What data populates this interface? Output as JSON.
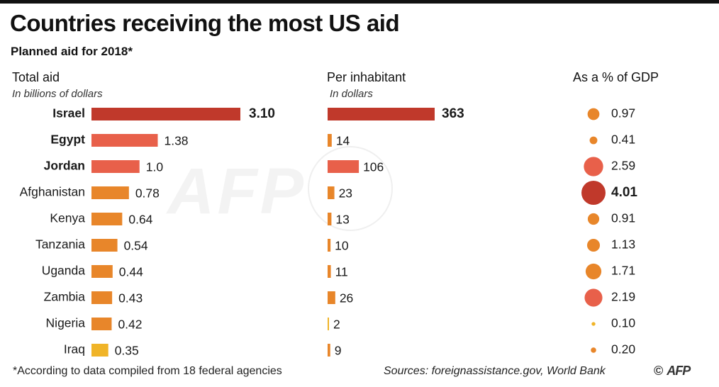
{
  "title": "Countries receiving the most US aid",
  "subtitle": "Planned aid for 2018*",
  "columns": {
    "total": {
      "heading": "Total aid",
      "unit": "In billions of dollars"
    },
    "per": {
      "heading": "Per inhabitant",
      "unit": "In dollars"
    },
    "gdp": {
      "heading": "As a % of GDP"
    }
  },
  "chart_data": {
    "type": "bar",
    "title": "Countries receiving the most US aid",
    "subtitle": "Planned aid for 2018*",
    "categories": [
      "Israel",
      "Egypt",
      "Jordan",
      "Afghanistan",
      "Kenya",
      "Tanzania",
      "Uganda",
      "Zambia",
      "Nigeria",
      "Iraq"
    ],
    "series": [
      {
        "name": "Total aid",
        "unit": "In billions of dollars",
        "values": [
          3.1,
          1.38,
          1.0,
          0.78,
          0.64,
          0.54,
          0.44,
          0.43,
          0.42,
          0.35
        ],
        "labels": [
          "3.10",
          "1.38",
          "1.0",
          "0.78",
          "0.64",
          "0.54",
          "0.44",
          "0.43",
          "0.42",
          "0.35"
        ]
      },
      {
        "name": "Per inhabitant",
        "unit": "In dollars",
        "values": [
          363,
          14,
          106,
          23,
          13,
          10,
          11,
          26,
          2,
          9
        ],
        "labels": [
          "363",
          "14",
          "106",
          "23",
          "13",
          "10",
          "11",
          "26",
          "2",
          "9"
        ]
      },
      {
        "name": "As a % of GDP",
        "unit": "%",
        "values": [
          0.97,
          0.41,
          2.59,
          4.01,
          0.91,
          1.13,
          1.71,
          2.19,
          0.1,
          0.2
        ],
        "labels": [
          "0.97",
          "0.41",
          "2.59",
          "4.01",
          "0.91",
          "1.13",
          "1.71",
          "2.19",
          "0.10",
          "0.20"
        ]
      }
    ],
    "bold_categories": [
      "Israel",
      "Egypt",
      "Jordan"
    ]
  },
  "colors": {
    "dark_red": "#c0392b",
    "coral": "#e8604a",
    "orange": "#e8862a",
    "yellow": "#f0b428"
  },
  "footer": {
    "note": "*According to data compiled from 18 federal agencies",
    "sources": "Sources: foreignassistance.gov, World Bank",
    "copyright": "©",
    "logo_text": "AFP"
  },
  "watermark": "AFP"
}
